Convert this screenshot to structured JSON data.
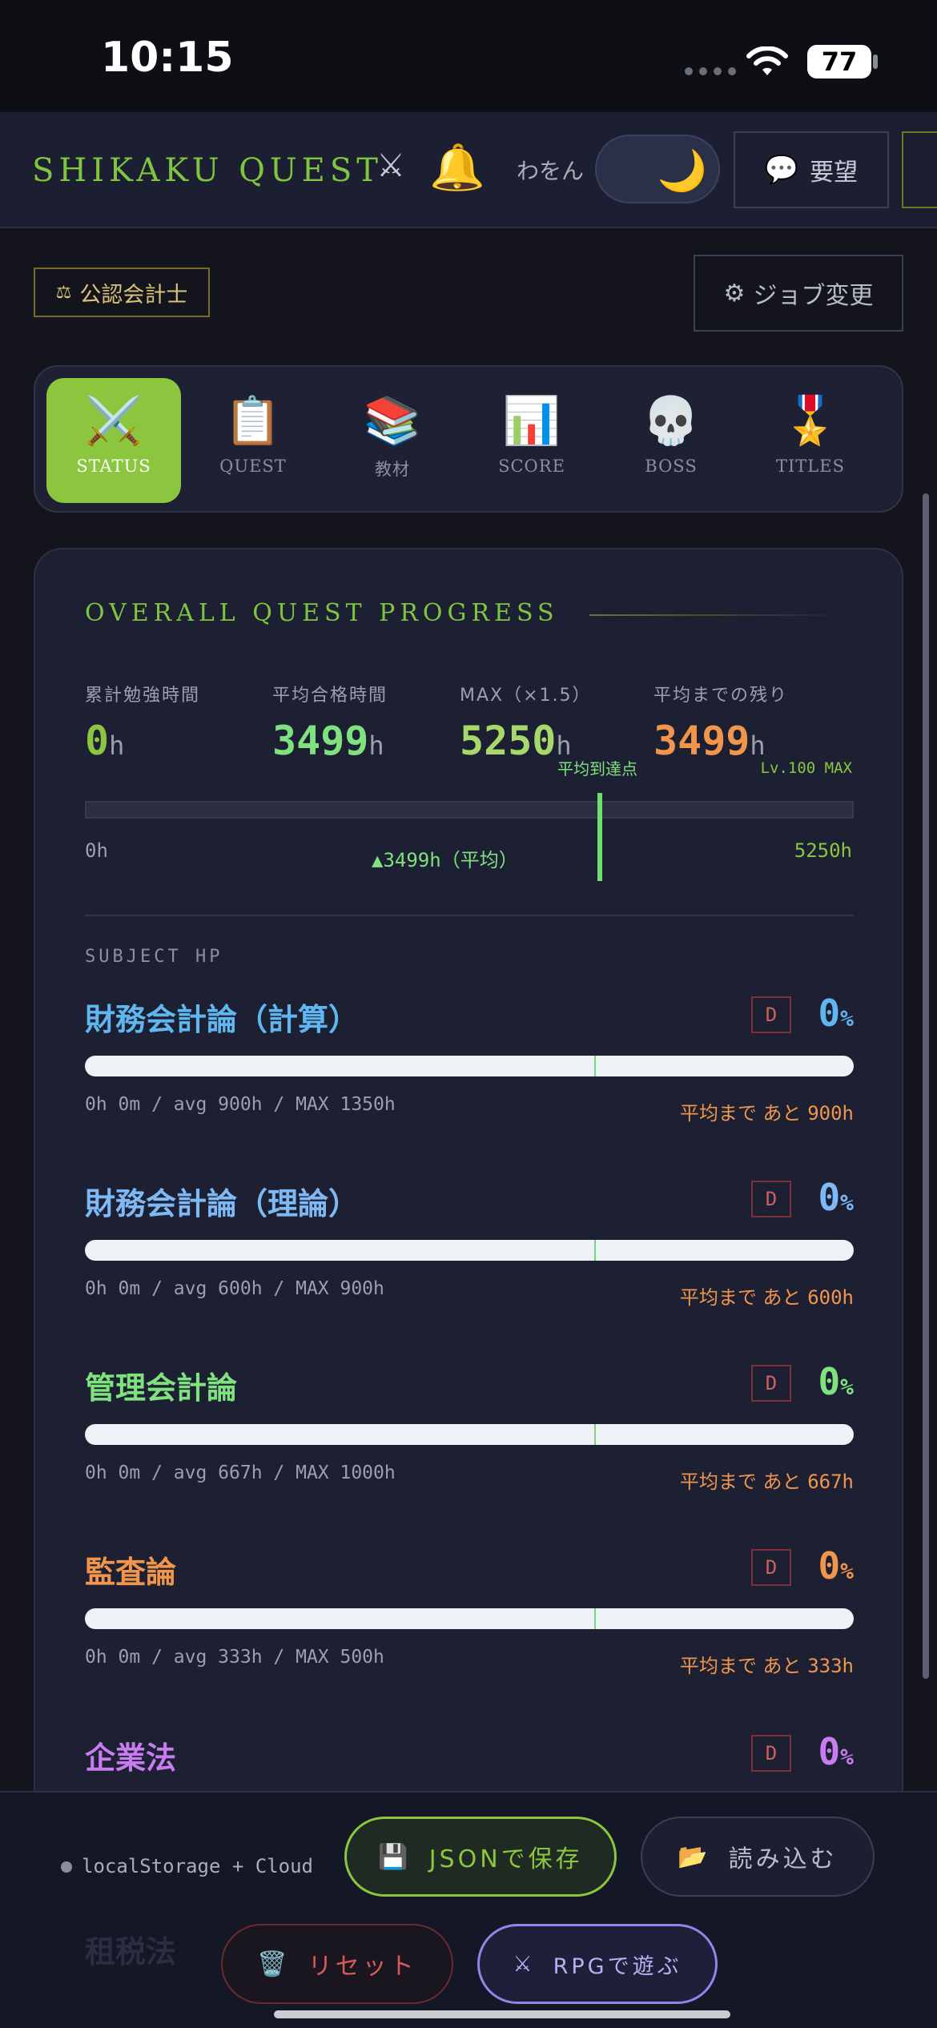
{
  "status_bar": {
    "time": "10:15",
    "battery": "77"
  },
  "header": {
    "logo": "SHIKAKU QUEST",
    "lang_label": "わをん",
    "request_label": "要望"
  },
  "job": {
    "badge_label": "公認会計士",
    "change_label": "ジョブ変更"
  },
  "tabs": [
    {
      "label": "STATUS",
      "icon": "⚔️",
      "active": true
    },
    {
      "label": "QUEST",
      "icon": "📋",
      "active": false
    },
    {
      "label": "教材",
      "icon": "📚",
      "active": false
    },
    {
      "label": "SCORE",
      "icon": "📊",
      "active": false
    },
    {
      "label": "BOSS",
      "icon": "💀",
      "active": false
    },
    {
      "label": "TITLES",
      "icon": "🎖️",
      "active": false
    }
  ],
  "overall": {
    "title": "OVERALL QUEST PROGRESS",
    "stats": [
      {
        "label": "累計勉強時間",
        "value": "0",
        "unit": "h",
        "color": "#8cc63f"
      },
      {
        "label": "平均合格時間",
        "value": "3499",
        "unit": "h",
        "color": "#7fe27f"
      },
      {
        "label": "MAX（×1.5）",
        "value": "5250",
        "unit": "h",
        "color": "#a6d96a"
      },
      {
        "label": "平均までの残り",
        "value": "3499",
        "unit": "h",
        "color": "#f0954a"
      }
    ],
    "reach_label": "平均到達点",
    "lv_label": "Lv.100 MAX",
    "progress_fraction": 0,
    "bar_min": "0h",
    "bar_avg": "▲3499h（平均）",
    "bar_max": "5250h"
  },
  "subjects_heading": "SUBJECT HP",
  "subjects": [
    {
      "name": "財務会計論（計算）",
      "grade": "D",
      "pct": "0",
      "color": "#5fb6f0",
      "fraction": 0,
      "meta": "0h 0m / avg 900h / MAX 1350h",
      "remain_text": "平均まで あと",
      "remain_hours": "900h"
    },
    {
      "name": "財務会計論（理論）",
      "grade": "D",
      "pct": "0",
      "color": "#7fb9f5",
      "fraction": 0,
      "meta": "0h 0m / avg 600h / MAX 900h",
      "remain_text": "平均まで あと",
      "remain_hours": "600h"
    },
    {
      "name": "管理会計論",
      "grade": "D",
      "pct": "0",
      "color": "#7fe27f",
      "fraction": 0,
      "meta": "0h 0m / avg 667h / MAX 1000h",
      "remain_text": "平均まで あと",
      "remain_hours": "667h"
    },
    {
      "name": "監査論",
      "grade": "D",
      "pct": "0",
      "color": "#f0954a",
      "fraction": 0,
      "meta": "0h 0m / avg 333h / MAX 500h",
      "remain_text": "平均まで あと",
      "remain_hours": "333h"
    },
    {
      "name": "企業法",
      "grade": "D",
      "pct": "0",
      "color": "#c97cf0",
      "fraction": 0
    }
  ],
  "footer": {
    "storage_label": "localStorage + Cloud",
    "save_label": "JSONで保存",
    "load_label": "読み込む",
    "reset_label": "リセット",
    "rpg_label": "RPGで遊ぶ",
    "ghost_subject": "租税法"
  }
}
